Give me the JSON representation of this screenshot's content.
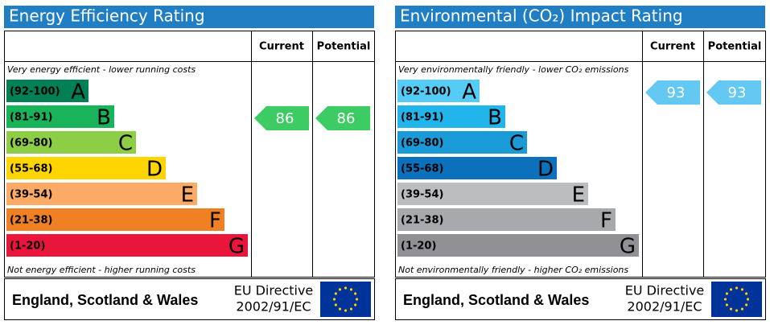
{
  "panels": [
    {
      "title": "Energy Efficiency Rating",
      "headers": [
        "Current",
        "Potential"
      ],
      "top_note": "Very energy efficient - lower running costs",
      "bottom_note": "Not energy efficient - higher running costs",
      "bands": [
        {
          "range": "(92-100)",
          "letter": "A",
          "color": "#008054"
        },
        {
          "range": "(81-91)",
          "letter": "B",
          "color": "#19b459"
        },
        {
          "range": "(69-80)",
          "letter": "C",
          "color": "#8dce46"
        },
        {
          "range": "(55-68)",
          "letter": "D",
          "color": "#ffd500"
        },
        {
          "range": "(39-54)",
          "letter": "E",
          "color": "#fcaa65"
        },
        {
          "range": "(21-38)",
          "letter": "F",
          "color": "#ef8023"
        },
        {
          "range": "(1-20)",
          "letter": "G",
          "color": "#e9153b"
        }
      ],
      "current": 86,
      "potential": 86,
      "arrow_color": "#3dcc63",
      "footer": {
        "region": "England, Scotland & Wales",
        "directive": [
          "EU Directive",
          "2002/91/EC"
        ]
      }
    },
    {
      "title": "Environmental (CO₂) Impact Rating",
      "headers": [
        "Current",
        "Potential"
      ],
      "top_note": "Very environmentally friendly - lower CO₂ emissions",
      "bottom_note": "Not environmentally friendly - higher CO₂ emissions",
      "bands": [
        {
          "range": "(92-100)",
          "letter": "A",
          "color": "#55ccf5"
        },
        {
          "range": "(81-91)",
          "letter": "B",
          "color": "#22b5eb"
        },
        {
          "range": "(69-80)",
          "letter": "C",
          "color": "#1a9ad7"
        },
        {
          "range": "(55-68)",
          "letter": "D",
          "color": "#0c71bd"
        },
        {
          "range": "(39-54)",
          "letter": "E",
          "color": "#bbbdbf"
        },
        {
          "range": "(21-38)",
          "letter": "F",
          "color": "#a7a9ac"
        },
        {
          "range": "(1-20)",
          "letter": "G",
          "color": "#919195"
        }
      ],
      "current": 93,
      "potential": 93,
      "arrow_color": "#63c8f2",
      "footer": {
        "region": "England, Scotland & Wales",
        "directive": [
          "EU Directive",
          "2002/91/EC"
        ]
      }
    }
  ]
}
